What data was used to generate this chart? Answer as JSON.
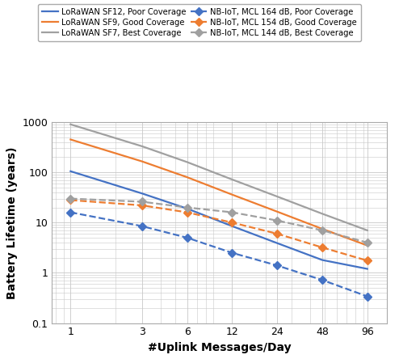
{
  "x_values": [
    1,
    3,
    6,
    12,
    24,
    48,
    96
  ],
  "lorawan_sf12": [
    105,
    38,
    19,
    8.5,
    3.9,
    1.8,
    1.2
  ],
  "lorawan_sf9": [
    450,
    165,
    80,
    36,
    16.5,
    7.5,
    3.5
  ],
  "lorawan_sf7": [
    900,
    330,
    160,
    72,
    33,
    15,
    7.0
  ],
  "nb_iot_164": [
    16,
    8.5,
    5.0,
    2.5,
    1.4,
    0.72,
    0.34
  ],
  "nb_iot_154": [
    28,
    22,
    16,
    10,
    6.0,
    3.2,
    1.75
  ],
  "nb_iot_144": [
    30,
    26,
    20,
    16,
    11,
    7.0,
    4.0
  ],
  "colors": {
    "lorawan_sf12": "#4472C4",
    "lorawan_sf9": "#ED7D31",
    "lorawan_sf7": "#A0A0A0",
    "nb_iot_164": "#4472C4",
    "nb_iot_154": "#ED7D31",
    "nb_iot_144": "#A0A0A0"
  },
  "labels": {
    "lorawan_sf12": "LoRaWAN SF12, Poor Coverage",
    "lorawan_sf9": "LoRaWAN SF9, Good Coverage",
    "lorawan_sf7": "LoRaWAN SF7, Best Coverage",
    "nb_iot_164": "NB-IoT, MCL 164 dB, Poor Coverage",
    "nb_iot_154": "NB-IoT, MCL 154 dB, Good Coverage",
    "nb_iot_144": "NB-IoT, MCL 144 dB, Best Coverage"
  },
  "legend_order": [
    "lorawan_sf12",
    "lorawan_sf9",
    "lorawan_sf7",
    "nb_iot_164",
    "nb_iot_154",
    "nb_iot_144"
  ],
  "ylabel": "Battery Lifetime (years)",
  "xlabel": "#Uplink Messages/Day",
  "ylim": [
    0.1,
    1000
  ],
  "bg_color": "#FFFFFF",
  "grid_color": "#C8C8C8"
}
